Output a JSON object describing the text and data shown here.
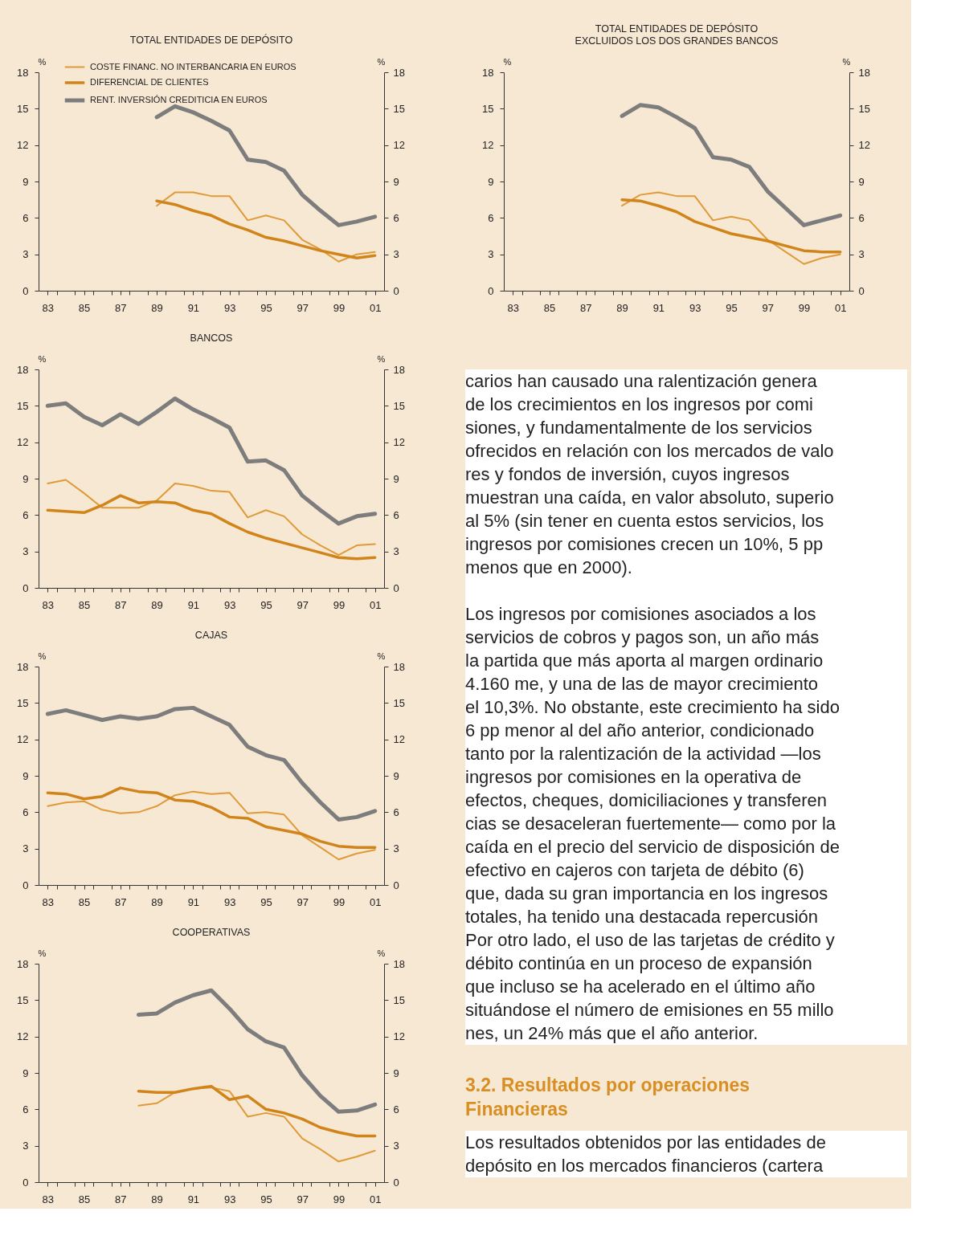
{
  "chart_data": [
    {
      "type": "line",
      "title": "TOTAL ENTIDADES DE DEPÓSITO",
      "ylabel": "%",
      "y2label": "%",
      "legend": "top left",
      "x": [
        1989,
        1990,
        1991,
        1992,
        1993,
        1994,
        1995,
        1996,
        1997,
        1998,
        1999,
        2000,
        2001
      ],
      "xlim": [
        1982.5,
        2001.5
      ],
      "xticks": [
        {
          "value": 1983,
          "label": "83"
        },
        {
          "value": 1985,
          "label": "85"
        },
        {
          "value": 1987,
          "label": "87"
        },
        {
          "value": 1989,
          "label": "89"
        },
        {
          "value": 1991,
          "label": "91"
        },
        {
          "value": 1993,
          "label": "93"
        },
        {
          "value": 1995,
          "label": "95"
        },
        {
          "value": 1997,
          "label": "97"
        },
        {
          "value": 1999,
          "label": "99"
        },
        {
          "value": 2001,
          "label": "01"
        },
        {
          "value": 1983.5,
          "label": null
        },
        {
          "value": 1984.5,
          "label": null
        },
        {
          "value": 1985.5,
          "label": null
        },
        {
          "value": 1986.5,
          "label": null
        },
        {
          "value": 1987.5,
          "label": null
        },
        {
          "value": 1988.5,
          "label": null
        },
        {
          "value": 1989.5,
          "label": null
        },
        {
          "value": 1990.5,
          "label": null
        },
        {
          "value": 1991.5,
          "label": null
        },
        {
          "value": 1992.5,
          "label": null
        },
        {
          "value": 1993.5,
          "label": null
        },
        {
          "value": 1994.5,
          "label": null
        },
        {
          "value": 1995.5,
          "label": null
        },
        {
          "value": 1996.5,
          "label": null
        },
        {
          "value": 1997.5,
          "label": null
        },
        {
          "value": 1998.5,
          "label": null
        },
        {
          "value": 1999.5,
          "label": null
        },
        {
          "value": 2000.5,
          "label": null
        }
      ],
      "ylim": [
        0,
        18
      ],
      "yticks": [
        0,
        3,
        6,
        9,
        12,
        15,
        18
      ],
      "y2lim": [
        0,
        18
      ],
      "y2ticks": [
        0,
        3,
        6,
        9,
        12,
        15,
        18
      ],
      "series": [
        {
          "name": "COSTE  FINANC.  NO INTERBANCARIA EN EUROS",
          "color": "#e09a38",
          "values": [
            7.0,
            8.1,
            8.1,
            7.8,
            7.8,
            5.8,
            6.2,
            5.8,
            4.2,
            3.4,
            2.4,
            3.0,
            3.2
          ]
        },
        {
          "name": "DIFERENCIAL DE CLIENTES",
          "color": "#d0841a",
          "values": [
            7.4,
            7.1,
            6.6,
            6.2,
            5.5,
            5.0,
            4.4,
            4.1,
            3.7,
            3.3,
            3.0,
            2.7,
            2.9
          ]
        },
        {
          "name": "RENT. INVERSIÓN CREDITICIA EN EUROS",
          "color": "#7d7d7d",
          "values": [
            14.3,
            15.2,
            14.7,
            14.0,
            13.2,
            10.8,
            10.6,
            9.9,
            7.9,
            6.6,
            5.4,
            5.7,
            6.1
          ]
        }
      ]
    },
    {
      "type": "line",
      "title": "TOTAL ENTIDADES DE DEPÓSITO\nEXCLUIDOS LOS DOS GRANDES BANCOS",
      "ylabel": "%",
      "y2label": "%",
      "x": [
        1989,
        1990,
        1991,
        1992,
        1993,
        1994,
        1995,
        1996,
        1997,
        1998,
        1999,
        2000,
        2001
      ],
      "xlim": [
        1982.5,
        2001.5
      ],
      "xticks": [
        {
          "value": 1983,
          "label": "83"
        },
        {
          "value": 1985,
          "label": "85"
        },
        {
          "value": 1987,
          "label": "87"
        },
        {
          "value": 1989,
          "label": "89"
        },
        {
          "value": 1991,
          "label": "91"
        },
        {
          "value": 1993,
          "label": "93"
        },
        {
          "value": 1995,
          "label": "95"
        },
        {
          "value": 1997,
          "label": "97"
        },
        {
          "value": 1999,
          "label": "99"
        },
        {
          "value": 2001,
          "label": "01"
        },
        {
          "value": 1983.5,
          "label": null
        },
        {
          "value": 1984.5,
          "label": null
        },
        {
          "value": 1985.5,
          "label": null
        },
        {
          "value": 1986.5,
          "label": null
        },
        {
          "value": 1987.5,
          "label": null
        },
        {
          "value": 1988.5,
          "label": null
        },
        {
          "value": 1989.5,
          "label": null
        },
        {
          "value": 1990.5,
          "label": null
        },
        {
          "value": 1991.5,
          "label": null
        },
        {
          "value": 1992.5,
          "label": null
        },
        {
          "value": 1993.5,
          "label": null
        },
        {
          "value": 1994.5,
          "label": null
        },
        {
          "value": 1995.5,
          "label": null
        },
        {
          "value": 1996.5,
          "label": null
        },
        {
          "value": 1997.5,
          "label": null
        },
        {
          "value": 1998.5,
          "label": null
        },
        {
          "value": 1999.5,
          "label": null
        },
        {
          "value": 2000.5,
          "label": null
        }
      ],
      "ylim": [
        0,
        18
      ],
      "yticks": [
        0,
        3,
        6,
        9,
        12,
        15,
        18
      ],
      "y2lim": [
        0,
        18
      ],
      "y2ticks": [
        0,
        3,
        6,
        9,
        12,
        15,
        18
      ],
      "series": [
        {
          "color": "#e09a38",
          "values": [
            7.0,
            7.9,
            8.1,
            7.8,
            7.8,
            5.8,
            6.1,
            5.8,
            4.2,
            3.2,
            2.2,
            2.7,
            3.0
          ]
        },
        {
          "color": "#d0841a",
          "values": [
            7.5,
            7.4,
            7.0,
            6.5,
            5.7,
            5.2,
            4.7,
            4.4,
            4.1,
            3.7,
            3.3,
            3.2,
            3.2
          ]
        },
        {
          "color": "#7d7d7d",
          "values": [
            14.4,
            15.3,
            15.1,
            14.3,
            13.4,
            11.0,
            10.8,
            10.2,
            8.2,
            6.8,
            5.4,
            5.8,
            6.2
          ]
        }
      ]
    },
    {
      "type": "line",
      "title": "BANCOS",
      "ylabel": "%",
      "y2label": "%",
      "x": [
        1983,
        1984,
        1985,
        1986,
        1987,
        1988,
        1989,
        1990,
        1991,
        1992,
        1993,
        1994,
        1995,
        1996,
        1997,
        1998,
        1999,
        2000,
        2001
      ],
      "xlim": [
        1982.5,
        2001.5
      ],
      "xticks": [
        {
          "value": 1983,
          "label": "83"
        },
        {
          "value": 1985,
          "label": "85"
        },
        {
          "value": 1987,
          "label": "87"
        },
        {
          "value": 1989,
          "label": "89"
        },
        {
          "value": 1991,
          "label": "91"
        },
        {
          "value": 1993,
          "label": "93"
        },
        {
          "value": 1995,
          "label": "95"
        },
        {
          "value": 1997,
          "label": "97"
        },
        {
          "value": 1999,
          "label": "99"
        },
        {
          "value": 2001,
          "label": "01"
        },
        {
          "value": 1983.5,
          "label": null
        },
        {
          "value": 1984.5,
          "label": null
        },
        {
          "value": 1985.5,
          "label": null
        },
        {
          "value": 1986.5,
          "label": null
        },
        {
          "value": 1987.5,
          "label": null
        },
        {
          "value": 1988.5,
          "label": null
        },
        {
          "value": 1989.5,
          "label": null
        },
        {
          "value": 1990.5,
          "label": null
        },
        {
          "value": 1991.5,
          "label": null
        },
        {
          "value": 1992.5,
          "label": null
        },
        {
          "value": 1993.5,
          "label": null
        },
        {
          "value": 1994.5,
          "label": null
        },
        {
          "value": 1995.5,
          "label": null
        },
        {
          "value": 1996.5,
          "label": null
        },
        {
          "value": 1997.5,
          "label": null
        },
        {
          "value": 1998.5,
          "label": null
        },
        {
          "value": 1999.5,
          "label": null
        },
        {
          "value": 2000.5,
          "label": null
        }
      ],
      "ylim": [
        0,
        18
      ],
      "yticks": [
        0,
        3,
        6,
        9,
        12,
        15,
        18
      ],
      "y2lim": [
        0,
        18
      ],
      "y2ticks": [
        0,
        3,
        6,
        9,
        12,
        15,
        18
      ],
      "series": [
        {
          "color": "#e09a38",
          "values": [
            8.6,
            8.9,
            7.8,
            6.6,
            6.6,
            6.6,
            7.2,
            8.6,
            8.4,
            8.0,
            7.9,
            5.8,
            6.4,
            5.9,
            4.4,
            3.5,
            2.7,
            3.5,
            3.6
          ]
        },
        {
          "color": "#d0841a",
          "values": [
            6.4,
            6.3,
            6.2,
            6.8,
            7.6,
            7.0,
            7.1,
            7.0,
            6.4,
            6.1,
            5.3,
            4.6,
            4.1,
            3.7,
            3.3,
            2.9,
            2.5,
            2.4,
            2.5
          ]
        },
        {
          "color": "#7d7d7d",
          "values": [
            15.0,
            15.2,
            14.1,
            13.4,
            14.3,
            13.5,
            14.5,
            15.6,
            14.7,
            14.0,
            13.2,
            10.4,
            10.5,
            9.7,
            7.6,
            6.4,
            5.3,
            5.9,
            6.1
          ]
        }
      ]
    },
    {
      "type": "line",
      "title": "CAJAS",
      "ylabel": "%",
      "y2label": "%",
      "x": [
        1983,
        1984,
        1985,
        1986,
        1987,
        1988,
        1989,
        1990,
        1991,
        1992,
        1993,
        1994,
        1995,
        1996,
        1997,
        1998,
        1999,
        2000,
        2001
      ],
      "xlim": [
        1982.5,
        2001.5
      ],
      "xticks": [
        {
          "value": 1983,
          "label": "83"
        },
        {
          "value": 1985,
          "label": "85"
        },
        {
          "value": 1987,
          "label": "87"
        },
        {
          "value": 1989,
          "label": "89"
        },
        {
          "value": 1991,
          "label": "91"
        },
        {
          "value": 1993,
          "label": "93"
        },
        {
          "value": 1995,
          "label": "95"
        },
        {
          "value": 1997,
          "label": "97"
        },
        {
          "value": 1999,
          "label": "99"
        },
        {
          "value": 2001,
          "label": "01"
        },
        {
          "value": 1983.5,
          "label": null
        },
        {
          "value": 1984.5,
          "label": null
        },
        {
          "value": 1985.5,
          "label": null
        },
        {
          "value": 1986.5,
          "label": null
        },
        {
          "value": 1987.5,
          "label": null
        },
        {
          "value": 1988.5,
          "label": null
        },
        {
          "value": 1989.5,
          "label": null
        },
        {
          "value": 1990.5,
          "label": null
        },
        {
          "value": 1991.5,
          "label": null
        },
        {
          "value": 1992.5,
          "label": null
        },
        {
          "value": 1993.5,
          "label": null
        },
        {
          "value": 1994.5,
          "label": null
        },
        {
          "value": 1995.5,
          "label": null
        },
        {
          "value": 1996.5,
          "label": null
        },
        {
          "value": 1997.5,
          "label": null
        },
        {
          "value": 1998.5,
          "label": null
        },
        {
          "value": 1999.5,
          "label": null
        },
        {
          "value": 2000.5,
          "label": null
        }
      ],
      "ylim": [
        0,
        18
      ],
      "yticks": [
        0,
        3,
        6,
        9,
        12,
        15,
        18
      ],
      "y2lim": [
        0,
        18
      ],
      "y2ticks": [
        0,
        3,
        6,
        9,
        12,
        15,
        18
      ],
      "series": [
        {
          "color": "#e09a38",
          "values": [
            6.5,
            6.8,
            6.9,
            6.2,
            5.9,
            6.0,
            6.5,
            7.4,
            7.7,
            7.5,
            7.6,
            5.9,
            6.0,
            5.8,
            4.1,
            3.1,
            2.1,
            2.6,
            2.9
          ]
        },
        {
          "color": "#d0841a",
          "values": [
            7.6,
            7.5,
            7.1,
            7.3,
            8.0,
            7.7,
            7.6,
            7.0,
            6.9,
            6.4,
            5.6,
            5.5,
            4.8,
            4.5,
            4.2,
            3.6,
            3.2,
            3.1,
            3.1
          ]
        },
        {
          "color": "#7d7d7d",
          "values": [
            14.1,
            14.4,
            14.0,
            13.6,
            13.9,
            13.7,
            13.9,
            14.5,
            14.6,
            13.9,
            13.2,
            11.4,
            10.7,
            10.3,
            8.4,
            6.8,
            5.4,
            5.6,
            6.1
          ]
        }
      ]
    },
    {
      "type": "line",
      "title": "COOPERATIVAS",
      "ylabel": "%",
      "y2label": "%",
      "x": [
        1988,
        1989,
        1990,
        1991,
        1992,
        1993,
        1994,
        1995,
        1996,
        1997,
        1998,
        1999,
        2000,
        2001
      ],
      "xlim": [
        1982.5,
        2001.5
      ],
      "xticks": [
        {
          "value": 1983,
          "label": "83"
        },
        {
          "value": 1985,
          "label": "85"
        },
        {
          "value": 1987,
          "label": "87"
        },
        {
          "value": 1989,
          "label": "89"
        },
        {
          "value": 1991,
          "label": "91"
        },
        {
          "value": 1993,
          "label": "93"
        },
        {
          "value": 1995,
          "label": "95"
        },
        {
          "value": 1997,
          "label": "97"
        },
        {
          "value": 1999,
          "label": "99"
        },
        {
          "value": 2001,
          "label": "01"
        },
        {
          "value": 1983.5,
          "label": null
        },
        {
          "value": 1984.5,
          "label": null
        },
        {
          "value": 1985.5,
          "label": null
        },
        {
          "value": 1986.5,
          "label": null
        },
        {
          "value": 1987.5,
          "label": null
        },
        {
          "value": 1988.5,
          "label": null
        },
        {
          "value": 1989.5,
          "label": null
        },
        {
          "value": 1990.5,
          "label": null
        },
        {
          "value": 1991.5,
          "label": null
        },
        {
          "value": 1992.5,
          "label": null
        },
        {
          "value": 1993.5,
          "label": null
        },
        {
          "value": 1994.5,
          "label": null
        },
        {
          "value": 1995.5,
          "label": null
        },
        {
          "value": 1996.5,
          "label": null
        },
        {
          "value": 1997.5,
          "label": null
        },
        {
          "value": 1998.5,
          "label": null
        },
        {
          "value": 1999.5,
          "label": null
        },
        {
          "value": 2000.5,
          "label": null
        }
      ],
      "ylim": [
        0,
        18
      ],
      "yticks": [
        0,
        3,
        6,
        9,
        12,
        15,
        18
      ],
      "y2lim": [
        0,
        18
      ],
      "y2ticks": [
        0,
        3,
        6,
        9,
        12,
        15,
        18
      ],
      "series": [
        {
          "color": "#e09a38",
          "values": [
            6.3,
            6.5,
            7.4,
            7.7,
            7.8,
            7.5,
            5.4,
            5.7,
            5.4,
            3.6,
            2.7,
            1.7,
            2.1,
            2.6
          ]
        },
        {
          "color": "#d0841a",
          "values": [
            7.5,
            7.4,
            7.4,
            7.7,
            7.9,
            6.8,
            7.1,
            6.0,
            5.7,
            5.2,
            4.5,
            4.1,
            3.8,
            3.8
          ]
        },
        {
          "color": "#7d7d7d",
          "values": [
            13.8,
            13.9,
            14.8,
            15.4,
            15.8,
            14.3,
            12.6,
            11.6,
            11.1,
            8.8,
            7.1,
            5.8,
            5.9,
            6.4
          ]
        }
      ]
    },
    {
      "type": "other",
      "annotations": [
        "carios han causado una ralentización genera\nde los crecimientos en los ingresos por comi\nsiones, y fundamentalmente de los servicios\nofrecidos en relación con los mercados de valo\nres y fondos de inversión, cuyos ingresos\nmuestran una caída, en valor absoluto, superio\nal 5% (sin tener en cuenta estos servicios, los\ningresos por comisiones crecen un 10%, 5 pp\nmenos que en 2000).",
        "Los ingresos por comisiones asociados a los\nservicios de cobros y pagos son, un año más\nla partida que más aporta al margen ordinario\n4.160 me, y una de las de mayor crecimiento\nel 10,3%. No obstante, este crecimiento ha sido\n6 pp menor al del año anterior, condicionado\ntanto por la ralentización de la actividad —los\ningresos por comisiones en la operativa de\nefectos, cheques, domiciliaciones y transferen\ncias se desaceleran fuertemente— como por la\ncaída en el precio del servicio de disposición de\nefectivo en cajeros con tarjeta de débito (6)\nque, dada su gran importancia en los ingresos\ntotales, ha tenido una destacada repercusión\nPor otro lado, el uso de las tarjetas de crédito y\ndébito continúa en un proceso de expansión\nque incluso se ha acelerado en el último año\nsituándose el número de emisiones en 55 millo\nnes, un 24% más que el año anterior."
      ]
    },
    {
      "type": "other",
      "title": "3.2.   Resultados por operaciones\n          Financieras",
      "annotations": [
        "Los resultados obtenidos por las entidades de\ndepósito en los mercados financieros (cartera"
      ]
    }
  ]
}
